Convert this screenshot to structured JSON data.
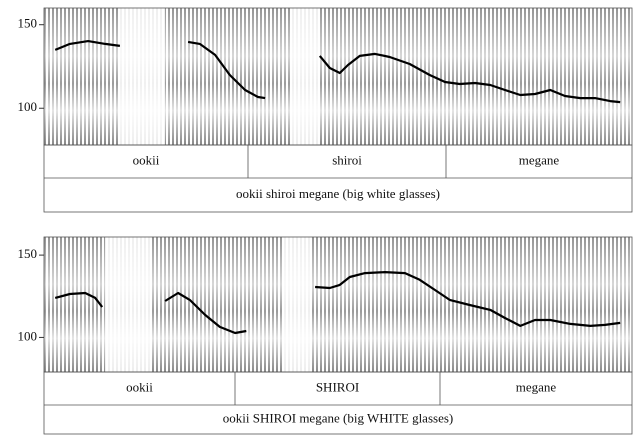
{
  "chart_data": [
    {
      "type": "line",
      "ylim": [
        78,
        160
      ],
      "yticks": [
        100,
        150
      ],
      "xlim": [
        0,
        1
      ],
      "series": [
        {
          "color": "#000000",
          "x": [
            0.019,
            0.044,
            0.075,
            0.104,
            0.129,
            0.18,
            0.245,
            0.265,
            0.291,
            0.316,
            0.342,
            0.364,
            0.376,
            0.418,
            0.469,
            0.486,
            0.503,
            0.517,
            0.537,
            0.563,
            0.588,
            0.622,
            0.656,
            0.682,
            0.707,
            0.733,
            0.759,
            0.784,
            0.81,
            0.835,
            0.861,
            0.886,
            0.912,
            0.937,
            0.963,
            0.98
          ],
          "values": [
            134.9,
            138.5,
            140.2,
            138.5,
            137.3,
            null,
            139.7,
            138.5,
            131.9,
            119.9,
            110.9,
            106.7,
            106.1,
            null,
            131.3,
            124.1,
            121.1,
            125.9,
            131.3,
            132.5,
            130.7,
            126.5,
            119.9,
            115.7,
            114.5,
            115.1,
            113.9,
            110.9,
            107.9,
            108.5,
            110.9,
            107.3,
            106.1,
            106.1,
            104.3,
            103.7
          ]
        }
      ],
      "words": [
        "ookii",
        "shiroi",
        "megane"
      ],
      "sentence": "ookii shiroi megane (big white glasses)"
    },
    {
      "type": "line",
      "ylim": [
        79,
        161
      ],
      "yticks": [
        100,
        150
      ],
      "xlim": [
        0,
        1
      ],
      "series": [
        {
          "color": "#000000",
          "x": [
            0.019,
            0.044,
            0.07,
            0.087,
            0.099,
            0.155,
            0.206,
            0.228,
            0.248,
            0.274,
            0.299,
            0.325,
            0.344,
            0.401,
            0.461,
            0.486,
            0.503,
            0.52,
            0.546,
            0.58,
            0.614,
            0.639,
            0.665,
            0.69,
            0.724,
            0.759,
            0.784,
            0.81,
            0.835,
            0.861,
            0.895,
            0.929,
            0.954,
            0.98
          ],
          "values": [
            124.0,
            126.4,
            127.0,
            124.0,
            118.5,
            null,
            122.1,
            127.0,
            122.8,
            113.7,
            106.4,
            102.7,
            103.9,
            null,
            130.6,
            130.0,
            131.9,
            136.7,
            139.1,
            139.7,
            139.1,
            135.0,
            128.8,
            122.8,
            119.7,
            116.7,
            111.8,
            107.0,
            110.6,
            110.6,
            108.2,
            107.0,
            107.6,
            108.8
          ]
        }
      ],
      "words": [
        "ookii",
        "SHIROI",
        "megane"
      ],
      "sentence": "ookii SHIROI megane (big WHITE glasses)"
    }
  ]
}
